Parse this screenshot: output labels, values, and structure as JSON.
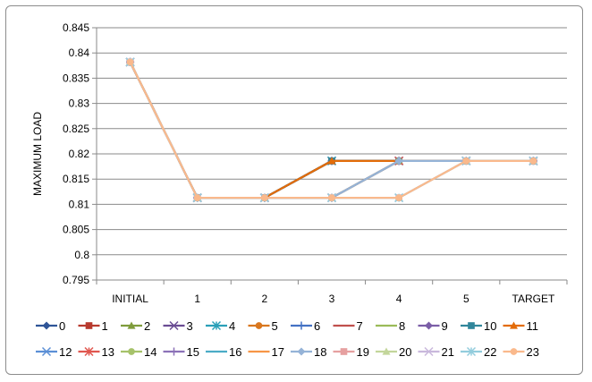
{
  "chart_data": {
    "type": "line",
    "title": "",
    "xlabel": "",
    "ylabel": "MAXIMUM LOAD",
    "categories": [
      "INITIAL",
      "1",
      "2",
      "3",
      "4",
      "5",
      "TARGET"
    ],
    "ylim": [
      0.795,
      0.845
    ],
    "yticks": [
      "0.795",
      "0.8",
      "0.805",
      "0.81",
      "0.815",
      "0.82",
      "0.825",
      "0.83",
      "0.835",
      "0.84",
      "0.845"
    ],
    "grid": "horizontal",
    "legend": "bottom",
    "series": [
      {
        "name": "0",
        "color": "#2f5597",
        "marker": "diamond",
        "values": [
          0.8382,
          0.8113,
          0.8113,
          0.8186,
          0.8186,
          0.8186,
          0.8186
        ]
      },
      {
        "name": "1",
        "color": "#b83a2e",
        "marker": "square",
        "values": [
          0.8382,
          0.8113,
          0.8113,
          0.8186,
          0.8186,
          0.8186,
          0.8186
        ]
      },
      {
        "name": "2",
        "color": "#7f9c3c",
        "marker": "triangle",
        "values": [
          0.8382,
          0.8113,
          0.8113,
          0.8186,
          0.8186,
          0.8186,
          0.8186
        ]
      },
      {
        "name": "3",
        "color": "#6a4c93",
        "marker": "x",
        "values": [
          0.8382,
          0.8113,
          0.8113,
          0.8186,
          0.8186,
          0.8186,
          0.8186
        ]
      },
      {
        "name": "4",
        "color": "#2aa0b8",
        "marker": "star",
        "values": [
          0.8382,
          0.8113,
          0.8113,
          0.8186,
          0.8186,
          0.8186,
          0.8186
        ]
      },
      {
        "name": "5",
        "color": "#d9771f",
        "marker": "circle",
        "values": [
          0.8382,
          0.8113,
          0.8113,
          0.8186,
          0.8186,
          0.8186,
          0.8186
        ]
      },
      {
        "name": "6",
        "color": "#4472c4",
        "marker": "plus",
        "values": [
          0.8382,
          0.8113,
          0.8113,
          0.8186,
          0.8186,
          0.8186,
          0.8186
        ]
      },
      {
        "name": "7",
        "color": "#c0504d",
        "marker": "none",
        "values": [
          0.8382,
          0.8113,
          0.8113,
          0.8186,
          0.8186,
          0.8186,
          0.8186
        ]
      },
      {
        "name": "8",
        "color": "#9bbb59",
        "marker": "none",
        "values": [
          0.8382,
          0.8113,
          0.8113,
          0.8186,
          0.8186,
          0.8186,
          0.8186
        ]
      },
      {
        "name": "9",
        "color": "#7b5ea7",
        "marker": "diamond",
        "values": [
          0.8382,
          0.8113,
          0.8113,
          0.8186,
          0.8186,
          0.8186,
          0.8186
        ]
      },
      {
        "name": "10",
        "color": "#31869b",
        "marker": "square",
        "values": [
          0.8382,
          0.8113,
          0.8113,
          0.8186,
          0.8186,
          0.8186,
          0.8186
        ]
      },
      {
        "name": "11",
        "color": "#e36c09",
        "marker": "triangle",
        "values": [
          0.8382,
          0.8113,
          0.8113,
          0.8186,
          0.8186,
          0.8186,
          0.8186
        ]
      },
      {
        "name": "12",
        "color": "#5b8fd6",
        "marker": "x",
        "values": [
          0.8382,
          0.8113,
          0.8113,
          0.8113,
          0.8186,
          0.8186,
          0.8186
        ]
      },
      {
        "name": "13",
        "color": "#e0574f",
        "marker": "star",
        "values": [
          0.8382,
          0.8113,
          0.8113,
          0.8113,
          0.8186,
          0.8186,
          0.8186
        ]
      },
      {
        "name": "14",
        "color": "#a6c26a",
        "marker": "circle",
        "values": [
          0.8382,
          0.8113,
          0.8113,
          0.8113,
          0.8186,
          0.8186,
          0.8186
        ]
      },
      {
        "name": "15",
        "color": "#8c72b8",
        "marker": "plus",
        "values": [
          0.8382,
          0.8113,
          0.8113,
          0.8113,
          0.8186,
          0.8186,
          0.8186
        ]
      },
      {
        "name": "16",
        "color": "#4bacc6",
        "marker": "none",
        "values": [
          0.8382,
          0.8113,
          0.8113,
          0.8113,
          0.8186,
          0.8186,
          0.8186
        ]
      },
      {
        "name": "17",
        "color": "#f79646",
        "marker": "none",
        "values": [
          0.8382,
          0.8113,
          0.8113,
          0.8113,
          0.8186,
          0.8186,
          0.8186
        ]
      },
      {
        "name": "18",
        "color": "#95b3d7",
        "marker": "diamond",
        "values": [
          0.8382,
          0.8113,
          0.8113,
          0.8113,
          0.8186,
          0.8186,
          0.8186
        ]
      },
      {
        "name": "19",
        "color": "#e6a0a0",
        "marker": "square",
        "values": [
          0.8382,
          0.8113,
          0.8113,
          0.8113,
          0.8113,
          0.8186,
          0.8186
        ]
      },
      {
        "name": "20",
        "color": "#c3d69b",
        "marker": "triangle",
        "values": [
          0.8382,
          0.8113,
          0.8113,
          0.8113,
          0.8113,
          0.8186,
          0.8186
        ]
      },
      {
        "name": "21",
        "color": "#c9b8dc",
        "marker": "x",
        "values": [
          0.8382,
          0.8113,
          0.8113,
          0.8113,
          0.8113,
          0.8186,
          0.8186
        ]
      },
      {
        "name": "22",
        "color": "#93cddd",
        "marker": "star",
        "values": [
          0.8382,
          0.8113,
          0.8113,
          0.8113,
          0.8113,
          0.8186,
          0.8186
        ]
      },
      {
        "name": "23",
        "color": "#fab98c",
        "marker": "circle",
        "values": [
          0.8382,
          0.8113,
          0.8113,
          0.8113,
          0.8113,
          0.8186,
          0.8186
        ]
      }
    ]
  }
}
